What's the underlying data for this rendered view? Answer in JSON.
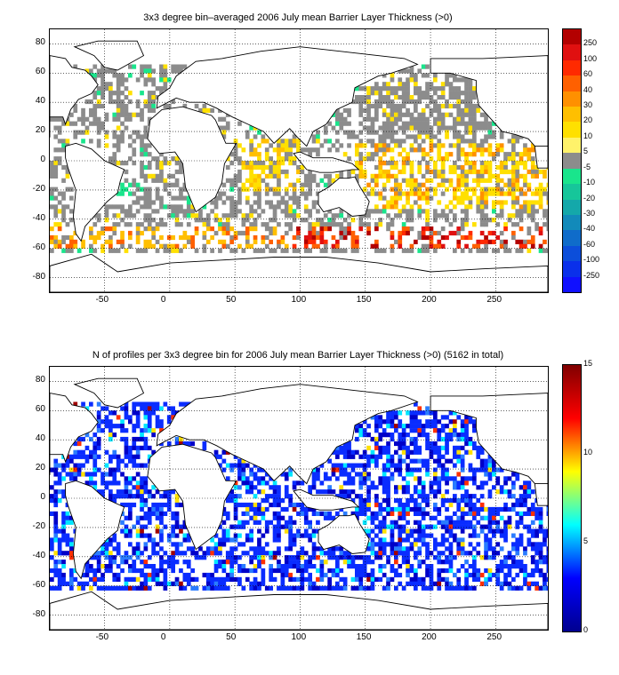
{
  "figure": {
    "top": {
      "title": "3x3 degree bin–averaged 2006 July mean Barrier Layer Thickness (>0)",
      "x_ticks": [
        "-50",
        "0",
        "50",
        "100",
        "150",
        "200",
        "250"
      ],
      "y_ticks": [
        "80",
        "60",
        "40",
        "20",
        "0",
        "-20",
        "-40",
        "-60",
        "-80"
      ],
      "colorbar": {
        "labels": [
          "250",
          "100",
          "60",
          "40",
          "30",
          "20",
          "10",
          "5",
          "-5",
          "-10",
          "-20",
          "-30",
          "-40",
          "-60",
          "-100",
          "-250"
        ],
        "colors": [
          "#b30000",
          "#e01010",
          "#ff2a00",
          "#ff6000",
          "#ff9000",
          "#ffbf00",
          "#ffe000",
          "#fff26a",
          "#8c8c8c",
          "#19e58c",
          "#16c69a",
          "#14a8aa",
          "#128aba",
          "#0f6cca",
          "#0c4eda",
          "#0a30ea",
          "#1010ff"
        ]
      }
    },
    "bottom": {
      "title": "N of profiles per 3x3 degree bin for 2006 July mean Barrier Layer Thickness (>0) (5162 in total)",
      "x_ticks": [
        "-50",
        "0",
        "50",
        "100",
        "150",
        "200",
        "250"
      ],
      "y_ticks": [
        "80",
        "60",
        "40",
        "20",
        "0",
        "-20",
        "-40",
        "-60",
        "-80"
      ],
      "colorbar": {
        "labels": [
          "15",
          "10",
          "5",
          "0"
        ],
        "colors": [
          "#800000",
          "#ff0000",
          "#ffff00",
          "#00ffff",
          "#0000ff",
          "#00008f"
        ]
      }
    }
  },
  "chart_data": [
    {
      "type": "heatmap",
      "title": "3x3 degree bin–averaged 2006 July mean Barrier Layer Thickness (>0)",
      "xlabel": "",
      "ylabel": "",
      "xlim": [
        -92,
        290
      ],
      "ylim": [
        -90,
        90
      ],
      "grid": true,
      "colorbar_ticks": [
        "250",
        "100",
        "60",
        "40",
        "30",
        "20",
        "10",
        "5",
        "-5",
        "-10",
        "-20",
        "-30",
        "-40",
        "-60",
        "-100",
        "-250"
      ],
      "regions": [
        {
          "lon": [
            150,
            240
          ],
          "lat": [
            20,
            50
          ],
          "value_band": "-5..5"
        },
        {
          "lon": [
            60,
            100
          ],
          "lat": [
            -20,
            10
          ],
          "value_band": "10..20"
        },
        {
          "lon": [
            95,
            210
          ],
          "lat": [
            -60,
            -45
          ],
          "value_band": "60..250"
        },
        {
          "lon": [
            140,
            290
          ],
          "lat": [
            -30,
            10
          ],
          "value_band": "10..30"
        },
        {
          "lon": [
            -60,
            -20
          ],
          "lat": [
            -20,
            -10
          ],
          "value_band": "-10..-5"
        }
      ]
    },
    {
      "type": "heatmap",
      "title": "N of profiles per 3x3 degree bin for 2006 July mean Barrier Layer Thickness (>0) (5162 in total)",
      "xlabel": "",
      "ylabel": "",
      "xlim": [
        -92,
        290
      ],
      "ylim": [
        -90,
        90
      ],
      "grid": true,
      "total_profiles": 5162,
      "colorbar_ticks": [
        "15",
        "10",
        "5",
        "0"
      ],
      "value_range": [
        0,
        15
      ]
    }
  ]
}
